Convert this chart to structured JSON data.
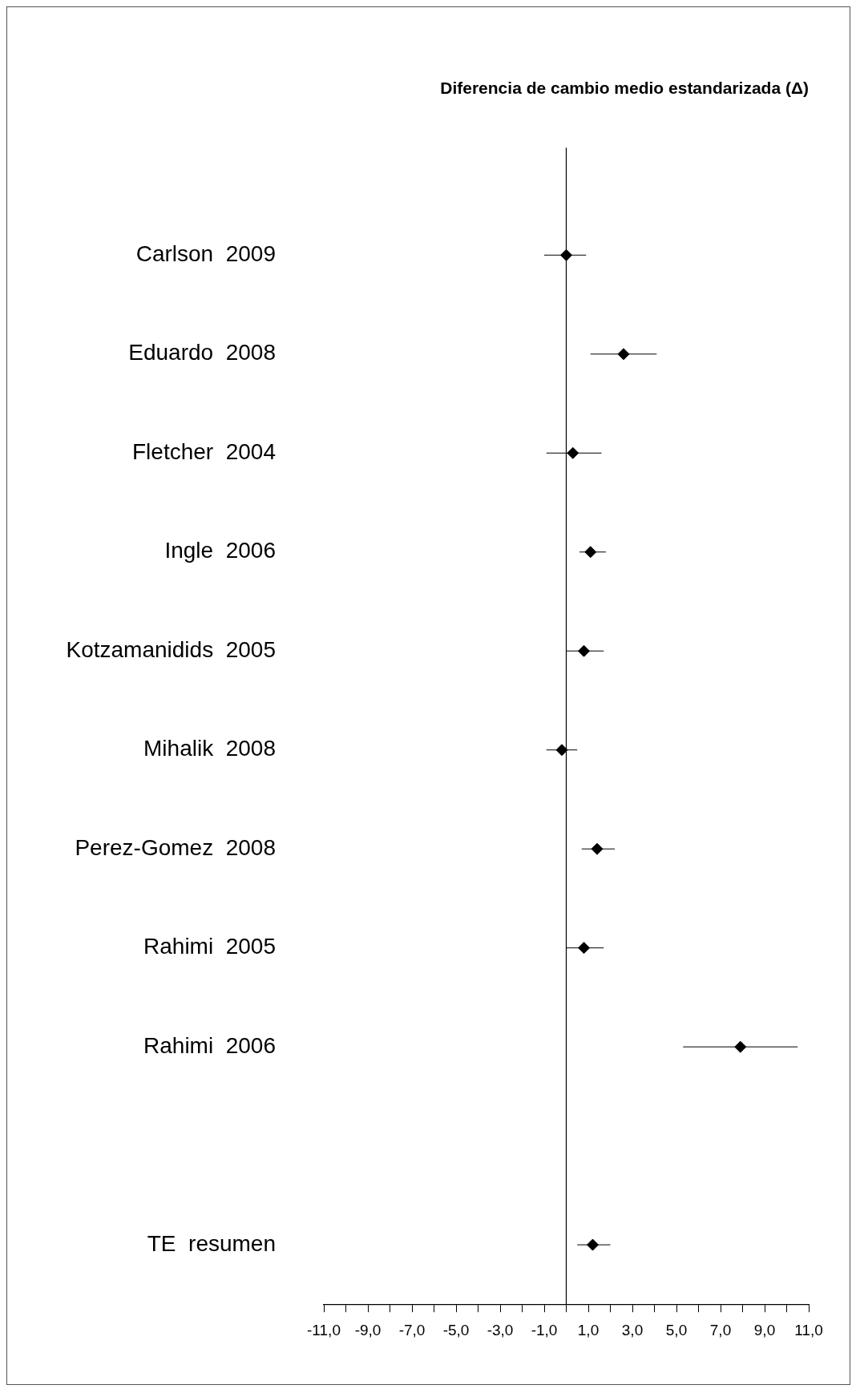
{
  "chart_data": {
    "type": "scatter",
    "title": "Diferencia de cambio medio estandarizada (Δ)",
    "categories": [
      "Carlson  2009",
      "Eduardo  2008",
      "Fletcher  2004",
      "Ingle  2006",
      "Kotzamanidids  2005",
      "Mihalik  2008",
      "Perez-Gomez  2008",
      "Rahimi  2005",
      "Rahimi  2006",
      null,
      "TE  resumen"
    ],
    "series": [
      {
        "color": "#000000",
        "values": [
          0.0,
          2.6,
          0.3,
          1.1,
          0.8,
          -0.2,
          1.4,
          0.8,
          7.9,
          null,
          1.2
        ],
        "errors": [
          [
            -1.0,
            0.9
          ],
          [
            1.1,
            4.1
          ],
          [
            -0.9,
            1.6
          ],
          [
            0.6,
            1.8
          ],
          [
            0.0,
            1.7
          ],
          [
            -0.9,
            0.5
          ],
          [
            0.7,
            2.2
          ],
          [
            0.0,
            1.7
          ],
          [
            5.3,
            10.5
          ],
          null,
          [
            0.5,
            2.0
          ]
        ]
      }
    ],
    "orientation": "horizontal",
    "marker": "diamond",
    "grid": false,
    "legend": false,
    "tick_labels": "x",
    "xlim": [
      -11,
      11
    ],
    "xticks": [
      {
        "value": -11,
        "label": "-11,0"
      },
      {
        "value": -10,
        "label": null
      },
      {
        "value": -9,
        "label": "-9,0"
      },
      {
        "value": -8,
        "label": null
      },
      {
        "value": -7,
        "label": "-7,0"
      },
      {
        "value": -6,
        "label": null
      },
      {
        "value": -5,
        "label": "-5,0"
      },
      {
        "value": -4,
        "label": null
      },
      {
        "value": -3,
        "label": "-3,0"
      },
      {
        "value": -2,
        "label": null
      },
      {
        "value": -1,
        "label": "-1,0"
      },
      {
        "value": 0,
        "label": null
      },
      {
        "value": 1,
        "label": "1,0"
      },
      {
        "value": 2,
        "label": null
      },
      {
        "value": 3,
        "label": "3,0"
      },
      {
        "value": 4,
        "label": null
      },
      {
        "value": 5,
        "label": "5,0"
      },
      {
        "value": 6,
        "label": null
      },
      {
        "value": 7,
        "label": "7,0"
      },
      {
        "value": 8,
        "label": null
      },
      {
        "value": 9,
        "label": "9,0"
      },
      {
        "value": 10,
        "label": null
      },
      {
        "value": 11,
        "label": "11,0"
      }
    ],
    "ref_lines": [
      {
        "axis": "x",
        "value": 0,
        "color": "#000000"
      }
    ]
  }
}
